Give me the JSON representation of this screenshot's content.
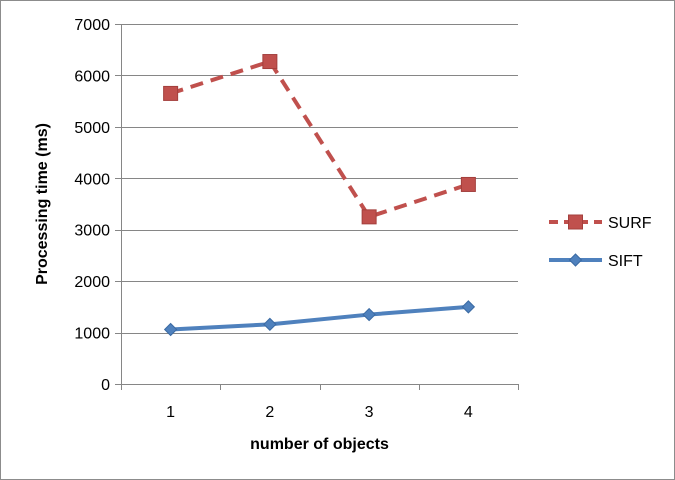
{
  "chart_data": {
    "type": "line",
    "title": "",
    "xlabel": "number of objects",
    "ylabel": "Processing time (ms)",
    "categories": [
      "1",
      "2",
      "3",
      "4"
    ],
    "ylim": [
      0,
      7000
    ],
    "yticks": [
      0,
      1000,
      2000,
      3000,
      4000,
      5000,
      6000,
      7000
    ],
    "grid": true,
    "legend_position": "right",
    "series": [
      {
        "name": "SURF",
        "values": [
          5650,
          6270,
          3250,
          3880
        ],
        "color": "#c0504d",
        "line_style": "dashed",
        "marker": "square"
      },
      {
        "name": "SIFT",
        "values": [
          1060,
          1160,
          1350,
          1500
        ],
        "color": "#4f81bd",
        "line_style": "solid",
        "marker": "diamond"
      }
    ]
  }
}
